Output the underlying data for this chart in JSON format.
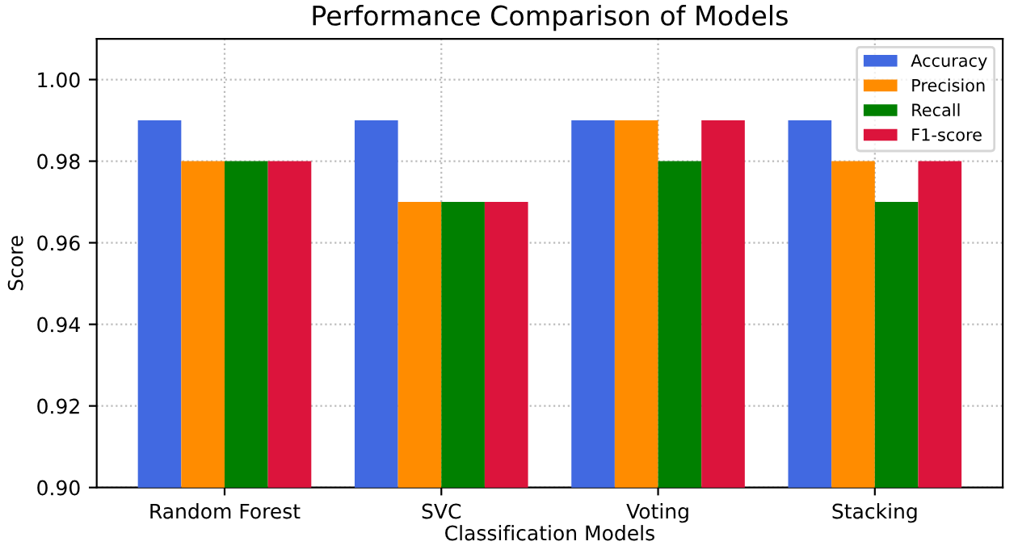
{
  "chart_data": {
    "type": "bar",
    "title": "Performance Comparison of Models",
    "xlabel": "Classification Models",
    "ylabel": "Score",
    "categories": [
      "Random Forest",
      "SVC",
      "Voting",
      "Stacking"
    ],
    "series": [
      {
        "name": "Accuracy",
        "color": "#4169e1",
        "values": [
          0.99,
          0.99,
          0.99,
          0.99
        ]
      },
      {
        "name": "Precision",
        "color": "#ff8c00",
        "values": [
          0.98,
          0.97,
          0.99,
          0.98
        ]
      },
      {
        "name": "Recall",
        "color": "#008000",
        "values": [
          0.98,
          0.97,
          0.98,
          0.97
        ]
      },
      {
        "name": "F1-score",
        "color": "#dc143c",
        "values": [
          0.98,
          0.97,
          0.99,
          0.98
        ]
      }
    ],
    "ylim": [
      0.9,
      1.01
    ],
    "yticks": [
      {
        "value": 0.9,
        "label": "0.90"
      },
      {
        "value": 0.92,
        "label": "0.92"
      },
      {
        "value": 0.94,
        "label": "0.94"
      },
      {
        "value": 0.96,
        "label": "0.96"
      },
      {
        "value": 0.98,
        "label": "0.98"
      },
      {
        "value": 1.0,
        "label": "1.00"
      }
    ],
    "grid": true,
    "legend": "top right"
  }
}
